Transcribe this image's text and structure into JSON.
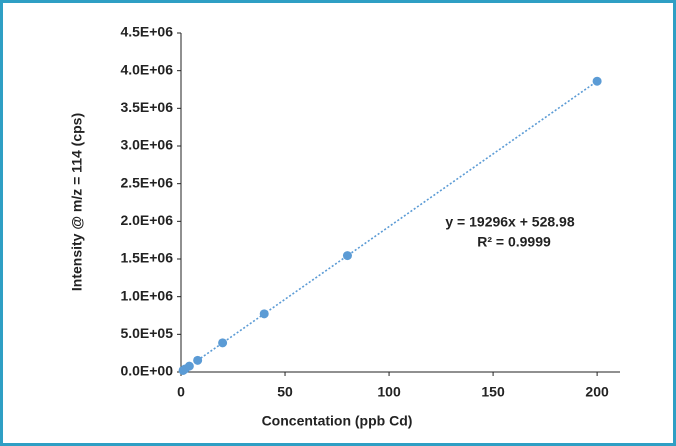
{
  "chart_data": {
    "type": "scatter",
    "x_label": "Concentation (ppb Cd)",
    "y_label": "Intensity @ m/z = 114 (cps)",
    "annotations": [
      "y = 19296x + 528.98",
      "R² = 0.9999"
    ],
    "series": [
      {
        "color": "#5b9bd5",
        "x": [
          1,
          2,
          4,
          8,
          20,
          40,
          80,
          200
        ],
        "values": [
          20000,
          40000,
          78000,
          155000,
          387000,
          772000,
          1545000,
          3860000
        ]
      }
    ],
    "trendline": {
      "color": "#5b9bd5",
      "x": [
        0,
        200
      ],
      "values": [
        529,
        3859729
      ]
    },
    "xlim": [
      0,
      211
    ],
    "xticks": [
      0,
      50,
      100,
      150,
      200
    ],
    "ylim": [
      0,
      4500000
    ],
    "yticks": [
      {
        "value": 0,
        "label": "0.0E+00"
      },
      {
        "value": 500000,
        "label": "5.0E+05"
      },
      {
        "value": 1000000,
        "label": "1.0E+06"
      },
      {
        "value": 1500000,
        "label": "1.5E+06"
      },
      {
        "value": 2000000,
        "label": "2.0E+06"
      },
      {
        "value": 2500000,
        "label": "2.5E+06"
      },
      {
        "value": 3000000,
        "label": "3.0E+06"
      },
      {
        "value": 3500000,
        "label": "3.5E+06"
      },
      {
        "value": 4000000,
        "label": "4.0E+06"
      },
      {
        "value": 4500000,
        "label": "4.5E+06"
      }
    ],
    "grid": false
  }
}
